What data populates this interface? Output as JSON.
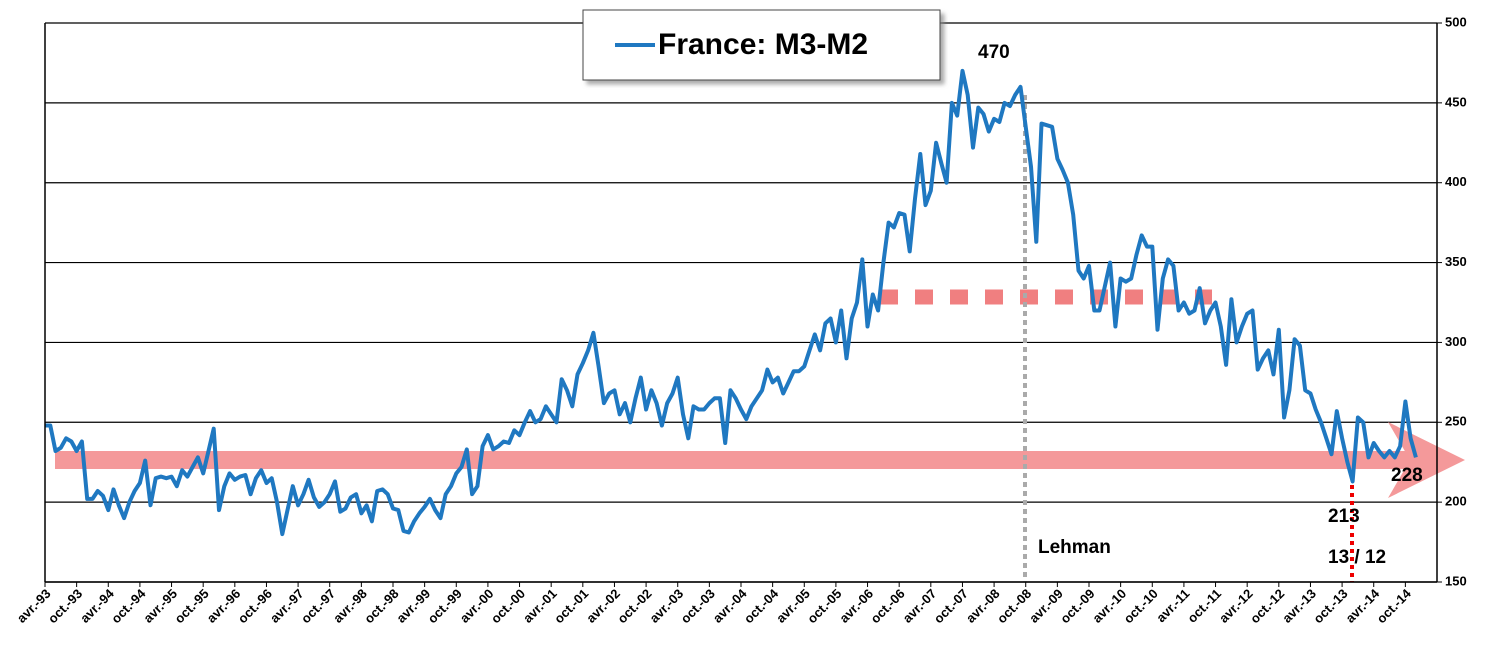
{
  "chart_data": {
    "type": "line",
    "title": "France: M3-M2",
    "categories": [
      "avr.-93",
      null,
      null,
      null,
      null,
      null,
      "oct.-93",
      null,
      null,
      null,
      null,
      null,
      "avr.-94",
      null,
      null,
      null,
      null,
      null,
      "oct.-94",
      null,
      null,
      null,
      null,
      null,
      "avr.-95",
      null,
      null,
      null,
      null,
      null,
      "oct.-95",
      null,
      null,
      null,
      null,
      null,
      "avr.-96",
      null,
      null,
      null,
      null,
      null,
      "oct.-96",
      null,
      null,
      null,
      null,
      null,
      "avr.-97",
      null,
      null,
      null,
      null,
      null,
      "oct.-97",
      null,
      null,
      null,
      null,
      null,
      "avr.-98",
      null,
      null,
      null,
      null,
      null,
      "oct.-98",
      null,
      null,
      null,
      null,
      null,
      "avr.-99",
      null,
      null,
      null,
      null,
      null,
      "oct.-99",
      null,
      null,
      null,
      null,
      null,
      "avr.-00",
      null,
      null,
      null,
      null,
      null,
      "oct.-00",
      null,
      null,
      null,
      null,
      null,
      "avr.-01",
      null,
      null,
      null,
      null,
      null,
      "oct.-01",
      null,
      null,
      null,
      null,
      null,
      "avr.-02",
      null,
      null,
      null,
      null,
      null,
      "oct.-02",
      null,
      null,
      null,
      null,
      null,
      "avr.-03",
      null,
      null,
      null,
      null,
      null,
      "oct.-03",
      null,
      null,
      null,
      null,
      null,
      "avr.-04",
      null,
      null,
      null,
      null,
      null,
      "oct.-04",
      null,
      null,
      null,
      null,
      null,
      "avr.-05",
      null,
      null,
      null,
      null,
      null,
      "oct.-05",
      null,
      null,
      null,
      null,
      null,
      "avr.-06",
      null,
      null,
      null,
      null,
      null,
      "oct.-06",
      null,
      null,
      null,
      null,
      null,
      "avr.-07",
      null,
      null,
      null,
      null,
      null,
      "oct.-07",
      null,
      null,
      null,
      null,
      null,
      "avr.-08",
      null,
      null,
      null,
      null,
      null,
      "oct.-08",
      null,
      null,
      null,
      null,
      null,
      "avr.-09",
      null,
      null,
      null,
      null,
      null,
      "oct.-09",
      null,
      null,
      null,
      null,
      null,
      "avr.-10",
      null,
      null,
      null,
      null,
      null,
      "oct.-10",
      null,
      null,
      null,
      null,
      null,
      "avr.-11",
      null,
      null,
      null,
      null,
      null,
      "oct.-11",
      null,
      null,
      null,
      null,
      null,
      "avr.-12",
      null,
      null,
      null,
      null,
      null,
      "oct.-12",
      null,
      null,
      null,
      null,
      null,
      "avr.-13",
      null,
      null,
      null,
      null,
      null,
      "oct.-13",
      null,
      null,
      null,
      null,
      null,
      "avr.-14",
      null,
      null,
      null,
      null,
      null,
      "oct.-14",
      null,
      null,
      null,
      null,
      null,
      null
    ],
    "series": [
      {
        "name": "France: M3-M2",
        "color": "#1f78c1",
        "values": [
          248,
          248,
          232,
          234,
          240,
          238,
          232,
          238,
          202,
          202,
          207,
          204,
          195,
          208,
          198,
          190,
          200,
          207,
          212,
          226,
          198,
          215,
          216,
          215,
          216,
          210,
          220,
          216,
          222,
          228,
          218,
          232,
          246,
          195,
          210,
          218,
          214,
          216,
          217,
          205,
          215,
          220,
          212,
          215,
          200,
          180,
          195,
          210,
          198,
          205,
          214,
          203,
          197,
          200,
          205,
          213,
          194,
          196,
          203,
          205,
          193,
          198,
          188,
          207,
          208,
          205,
          196,
          195,
          182,
          181,
          188,
          193,
          197,
          202,
          195,
          190,
          205,
          210,
          218,
          222,
          233,
          205,
          210,
          235,
          242,
          233,
          235,
          238,
          237,
          245,
          242,
          250,
          257,
          250,
          252,
          260,
          255,
          250,
          277,
          270,
          260,
          280,
          287,
          295,
          306,
          285,
          262,
          268,
          270,
          255,
          262,
          250,
          265,
          278,
          258,
          270,
          262,
          248,
          262,
          268,
          278,
          255,
          240,
          260,
          258,
          258,
          262,
          265,
          265,
          237,
          270,
          265,
          258,
          252,
          260,
          265,
          270,
          283,
          275,
          278,
          268,
          275,
          282,
          282,
          285,
          295,
          305,
          295,
          312,
          315,
          300,
          320,
          290,
          315,
          325,
          352,
          310,
          330,
          320,
          350,
          375,
          372,
          381,
          380,
          357,
          390,
          418,
          386,
          395,
          425,
          412,
          400,
          450,
          442,
          470,
          455,
          422,
          447,
          443,
          432,
          440,
          438,
          450,
          448,
          455,
          460,
          435,
          410,
          363,
          437,
          436,
          435,
          415,
          408,
          400,
          380,
          345,
          340,
          348,
          320,
          320,
          335,
          350,
          310,
          340,
          338,
          340,
          355,
          367,
          360,
          360,
          308,
          340,
          352,
          348,
          320,
          325,
          318,
          320,
          334,
          312,
          320,
          325,
          310,
          286,
          327,
          300,
          310,
          318,
          320,
          283,
          290,
          295,
          280,
          308,
          253,
          270,
          302,
          298,
          270,
          268,
          258,
          250,
          240,
          230,
          257,
          240,
          225,
          213,
          253,
          250,
          228,
          237,
          232,
          228,
          232,
          228,
          235,
          263,
          240,
          228,
          null,
          null,
          null,
          null
        ]
      }
    ],
    "ylim": [
      150,
      500
    ],
    "yticks": [
      150,
      200,
      250,
      300,
      350,
      400,
      450,
      500
    ],
    "grid": true,
    "annotations": [
      "470",
      "Lehman",
      "213",
      "13 / 12",
      "228"
    ]
  }
}
